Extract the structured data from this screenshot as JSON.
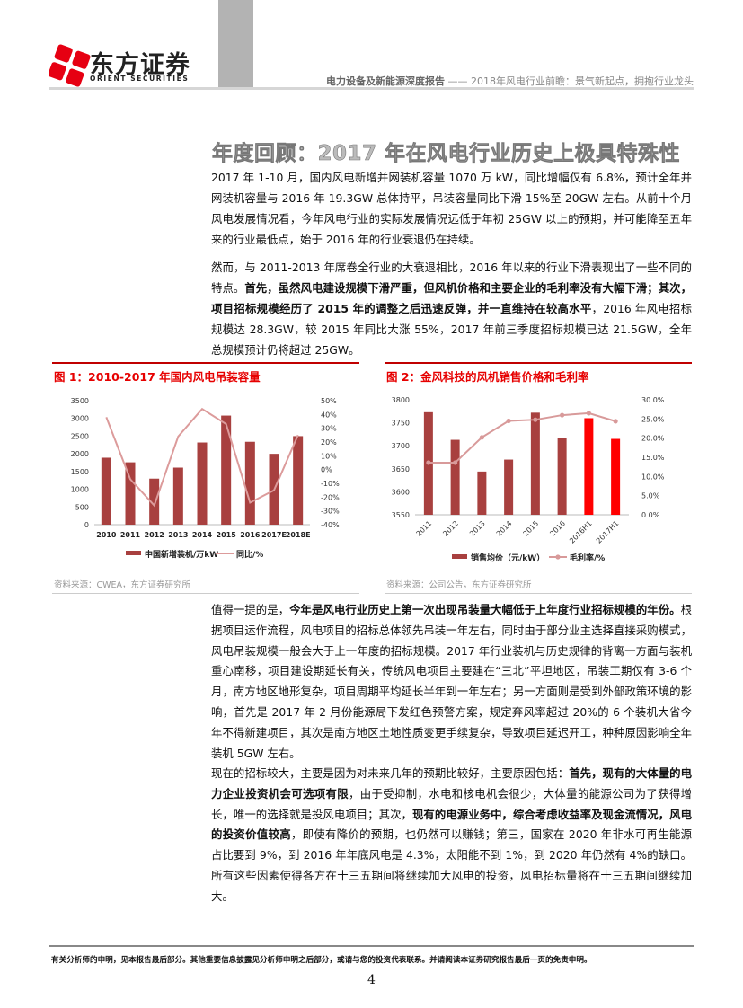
{
  "header": {
    "logo_cn": "东方证券",
    "logo_en": "ORIENT SECURITIES",
    "report_type": "电力设备及新能源深度报告",
    "separator": "——",
    "report_title": "2018年风电行业前瞻：景气新起点，拥抱行业龙头"
  },
  "section_title": "年度回顾：2017 年在风电行业历史上极具特殊性",
  "paragraphs": [
    [
      {
        "text": "2017 年 1-10 月，国内风电新增并网装机容量 1070 万 kW，同比增幅仅有 6.8%，预计全年并网装机容量与 2016 年 19.3GW 总体持平，吊装容量同比下滑 15%至 20GW 左右。从前十个月风电发展情况看，今年风电行业的实际发展情况远低于年初 25GW 以上的预期，并可能降至五年来的行业最低点，始于 2016 年的行业衰退仍在持续。",
        "bold": false
      }
    ],
    [
      {
        "text": "然而，与 2011-2013 年席卷全行业的大衰退相比，2016 年以来的行业下滑表现出了一些不同的特点。",
        "bold": false
      },
      {
        "text": "首先，虽然风电建设规模下滑严重，但风机价格和主要企业的毛利率没有大幅下滑；其次，项目招标规模经历了 2015 年的调整之后迅速反弹，并一直维持在较高水平",
        "bold": true
      },
      {
        "text": "，2016 年风电招标规模达 28.3GW，较 2015 年同比大涨 55%，2017 年前三季度招标规模已达 21.5GW，全年总规模预计仍将超过 25GW。",
        "bold": false
      }
    ],
    [
      {
        "text": "值得一提的是，",
        "bold": false
      },
      {
        "text": "今年是风电行业历史上第一次出现吊装量大幅低于上年度行业招标规模的年份。",
        "bold": true
      },
      {
        "text": "根据项目运作流程，风电项目的招标总体领先吊装一年左右，同时由于部分业主选择直接采购模式，风电吊装规模一般会大于上一年度的招标规模。2017 年行业装机与历史规律的背离一方面与装机重心南移，项目建设期延长有关，传统风电项目主要建在“三北”平坦地区，吊装工期仅有 3-6 个月，南方地区地形复杂，项目周期平均延长半年到一年左右；另一方面则是受到外部政策环境的影响，首先是 2017 年 2 月份能源局下发红色预警方案，规定弃风率超过 20%的 6 个装机大省今年不得新建项目，其次是南方地区土地性质变更手续复杂，导致项目延迟开工，种种原因影响全年装机 5GW 左右。",
        "bold": false
      }
    ],
    [
      {
        "text": "现在的招标较大，主要是因为对未来几年的预期比较好，主要原因包括：",
        "bold": false
      },
      {
        "text": "首先，现有的大体量的电力企业投资机会可选项有限",
        "bold": true
      },
      {
        "text": "，由于受抑制，水电和核电机会很少，大体量的能源公司为了获得增长，唯一的选择就是投风电项目；其次，",
        "bold": false
      },
      {
        "text": "现有的电源业务中，综合考虑收益率及现金流情况，风电的投资价值较高",
        "bold": true
      },
      {
        "text": "，即使有降价的预期，也仍然可以赚钱；第三，国家在 2020 年非水可再生能源占比要到 9%，到 2016 年年底风电是 4.3%，太阳能不到 1%，到 2020 年仍然有 4%的缺口。所有这些因素使得各方在十三五期间将继续加大风电的投资，风电招标量将在十三五期间继续加大。",
        "bold": false
      }
    ]
  ],
  "figures": [
    {
      "title": "图 1：2010-2017 年国内风电吊装容量",
      "source": "资料来源：CWEA，东方证券研究所"
    },
    {
      "title": "图 2：金风科技的风机销售价格和毛利率",
      "source": "资料来源：公司公告，东方证券研究所"
    }
  ],
  "chart_data": [
    {
      "type": "bar+line",
      "title": "图 1：2010-2017 年国内风电吊装容量",
      "categories": [
        "2010",
        "2011",
        "2012",
        "2013",
        "2014",
        "2015",
        "2016",
        "2017E",
        "2018E"
      ],
      "series": [
        {
          "name": "中国新增装机/万kW",
          "type": "bar",
          "axis": "left",
          "color": "#a8403f",
          "values": [
            1890,
            1760,
            1300,
            1610,
            2320,
            3080,
            2340,
            2000,
            2500
          ]
        },
        {
          "name": "同比/%",
          "type": "line",
          "axis": "right",
          "color": "#dc9b9b",
          "values": [
            38,
            -7,
            -26,
            24,
            44,
            33,
            -24,
            -15,
            25
          ]
        }
      ],
      "ylim": [
        0,
        3500
      ],
      "yticks": [
        0,
        500,
        1000,
        1500,
        2000,
        2500,
        3000,
        3500
      ],
      "y2lim": [
        -40,
        50
      ],
      "y2ticks": [
        "-40%",
        "-30%",
        "-20%",
        "-10%",
        "0%",
        "10%",
        "20%",
        "30%",
        "40%",
        "50%"
      ],
      "legend": "bottom",
      "grid": false
    },
    {
      "type": "bar+line",
      "title": "图 2：金风科技的风机销售价格和毛利率",
      "categories": [
        "2011",
        "2012",
        "2013",
        "2014",
        "2015",
        "2016",
        "2016H1",
        "2017H1"
      ],
      "series": [
        {
          "name": "销售均价（元/kW）",
          "type": "bar",
          "axis": "left",
          "color": "#a8403f",
          "highlight_color": "#ff0000",
          "highlight": [
            6,
            7
          ],
          "values": [
            3773,
            3713,
            3644,
            3670,
            3772,
            3717,
            3760,
            3715
          ]
        },
        {
          "name": "毛利率/%",
          "type": "line",
          "axis": "right",
          "color": "#d89a9a",
          "marker": "circle",
          "values": [
            13.6,
            13.6,
            20.2,
            24.5,
            24.8,
            26.0,
            26.5,
            24.4
          ]
        }
      ],
      "ylim": [
        3550,
        3800
      ],
      "yticks": [
        3550,
        3600,
        3650,
        3700,
        3750,
        3800
      ],
      "y2lim": [
        0,
        30
      ],
      "y2ticks": [
        "0.0%",
        "5.0%",
        "10.0%",
        "15.0%",
        "20.0%",
        "25.0%",
        "30.0%"
      ],
      "legend": "bottom",
      "grid": false
    }
  ],
  "footer": {
    "disclaimer": "有关分析师的申明，见本报告最后部分。其他重要信息披露见分析师申明之后部分，或请与您的投资代表联系。并请阅读本证券研究报告最后一页的免责申明。",
    "page_number": "4"
  }
}
